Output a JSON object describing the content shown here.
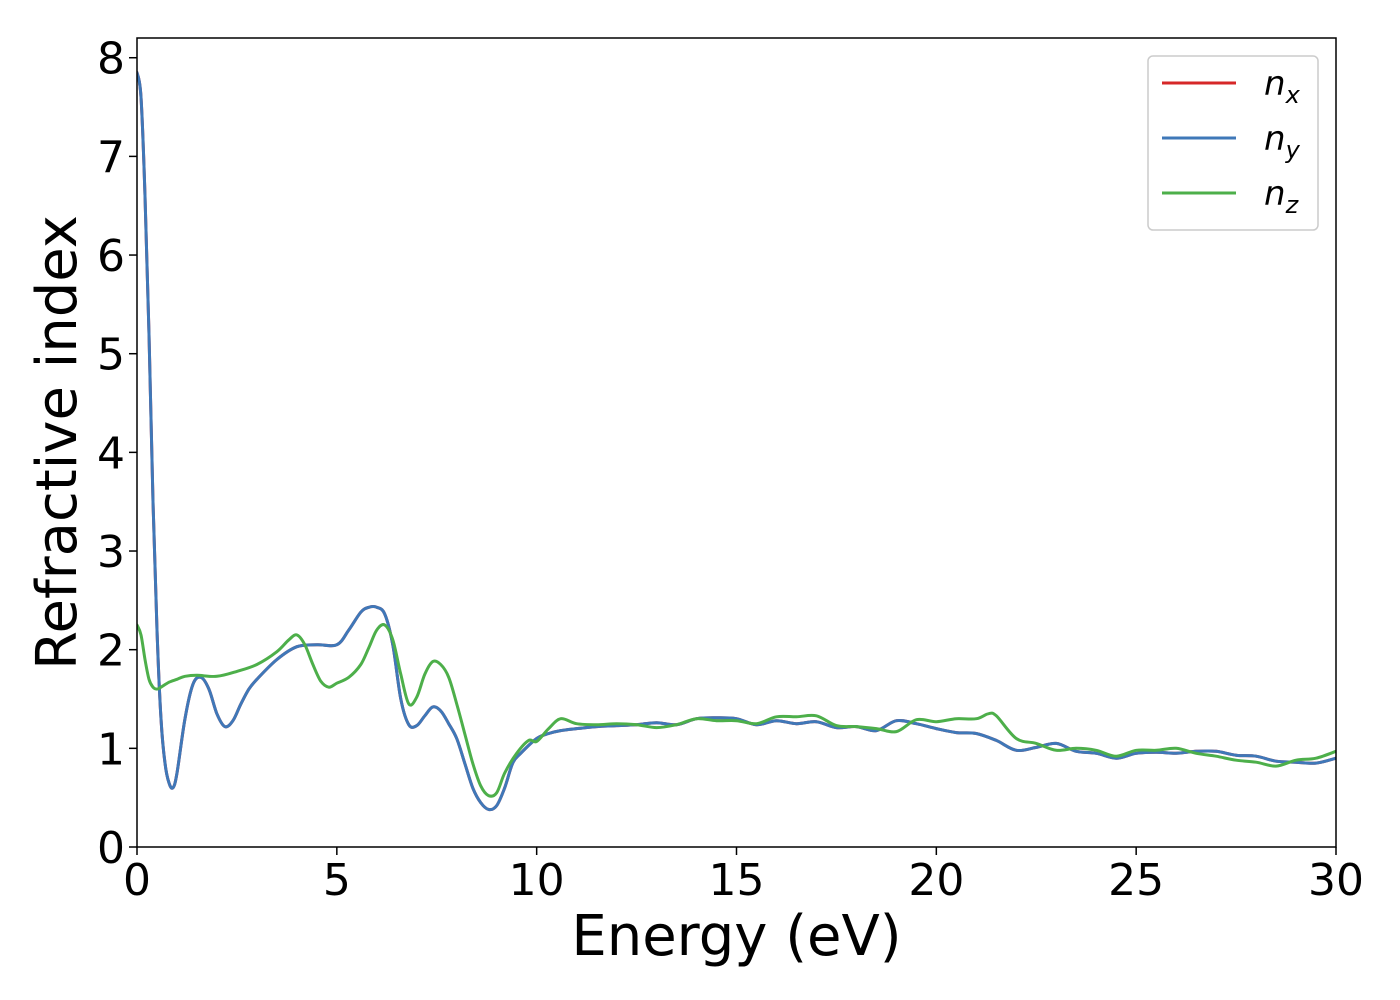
{
  "chart_data": {
    "type": "line",
    "xlabel": "Energy (eV)",
    "ylabel": "Refractive index",
    "xlim": [
      0,
      30
    ],
    "ylim": [
      0,
      8.2
    ],
    "xticks": [
      0,
      5,
      10,
      15,
      20,
      25,
      30
    ],
    "yticks": [
      0,
      1,
      2,
      3,
      4,
      5,
      6,
      7,
      8
    ],
    "grid": false,
    "legend_position": "top-right",
    "series": [
      {
        "name": "n",
        "subscript": "x",
        "color": "#d62728",
        "x": [
          0,
          0.1,
          0.2,
          0.3,
          0.4,
          0.5,
          0.6,
          0.7,
          0.8,
          0.9,
          1.0,
          1.2,
          1.4,
          1.6,
          1.8,
          2.0,
          2.2,
          2.4,
          2.6,
          2.8,
          3.0,
          3.5,
          4.0,
          4.5,
          5.0,
          5.3,
          5.6,
          5.8,
          6.0,
          6.2,
          6.4,
          6.6,
          6.8,
          7.0,
          7.2,
          7.4,
          7.6,
          7.8,
          8.0,
          8.2,
          8.4,
          8.6,
          8.8,
          9.0,
          9.2,
          9.4,
          9.6,
          10.0,
          10.3,
          10.6,
          11.0,
          11.5,
          12.0,
          12.5,
          13.0,
          13.5,
          14.0,
          14.5,
          15.0,
          15.5,
          16.0,
          16.5,
          17.0,
          17.5,
          18.0,
          18.5,
          19.0,
          19.5,
          20.0,
          20.5,
          21.0,
          21.5,
          22.0,
          22.5,
          23.0,
          23.5,
          24.0,
          24.5,
          25.0,
          25.5,
          26.0,
          26.5,
          27.0,
          27.5,
          28.0,
          28.5,
          29.0,
          29.5,
          30.0
        ],
        "y": [
          7.85,
          7.6,
          6.6,
          5.2,
          3.5,
          2.2,
          1.3,
          0.85,
          0.65,
          0.6,
          0.75,
          1.3,
          1.65,
          1.72,
          1.6,
          1.35,
          1.22,
          1.28,
          1.45,
          1.6,
          1.7,
          1.9,
          2.03,
          2.05,
          2.05,
          2.2,
          2.38,
          2.43,
          2.43,
          2.36,
          2.05,
          1.5,
          1.24,
          1.23,
          1.33,
          1.42,
          1.38,
          1.25,
          1.1,
          0.85,
          0.6,
          0.45,
          0.38,
          0.42,
          0.6,
          0.85,
          0.95,
          1.1,
          1.15,
          1.18,
          1.2,
          1.22,
          1.23,
          1.24,
          1.26,
          1.24,
          1.3,
          1.31,
          1.3,
          1.24,
          1.28,
          1.25,
          1.27,
          1.21,
          1.22,
          1.18,
          1.28,
          1.25,
          1.2,
          1.16,
          1.15,
          1.08,
          0.98,
          1.01,
          1.05,
          0.97,
          0.95,
          0.9,
          0.95,
          0.96,
          0.95,
          0.97,
          0.97,
          0.93,
          0.92,
          0.87,
          0.86,
          0.85,
          0.9
        ]
      },
      {
        "name": "n",
        "subscript": "y",
        "color": "#3f78b8",
        "x": [
          0,
          0.1,
          0.2,
          0.3,
          0.4,
          0.5,
          0.6,
          0.7,
          0.8,
          0.9,
          1.0,
          1.2,
          1.4,
          1.6,
          1.8,
          2.0,
          2.2,
          2.4,
          2.6,
          2.8,
          3.0,
          3.5,
          4.0,
          4.5,
          5.0,
          5.3,
          5.6,
          5.8,
          6.0,
          6.2,
          6.4,
          6.6,
          6.8,
          7.0,
          7.2,
          7.4,
          7.6,
          7.8,
          8.0,
          8.2,
          8.4,
          8.6,
          8.8,
          9.0,
          9.2,
          9.4,
          9.6,
          10.0,
          10.3,
          10.6,
          11.0,
          11.5,
          12.0,
          12.5,
          13.0,
          13.5,
          14.0,
          14.5,
          15.0,
          15.5,
          16.0,
          16.5,
          17.0,
          17.5,
          18.0,
          18.5,
          19.0,
          19.5,
          20.0,
          20.5,
          21.0,
          21.5,
          22.0,
          22.5,
          23.0,
          23.5,
          24.0,
          24.5,
          25.0,
          25.5,
          26.0,
          26.5,
          27.0,
          27.5,
          28.0,
          28.5,
          29.0,
          29.5,
          30.0
        ],
        "y": [
          7.85,
          7.6,
          6.6,
          5.2,
          3.5,
          2.2,
          1.3,
          0.85,
          0.65,
          0.6,
          0.75,
          1.3,
          1.65,
          1.72,
          1.6,
          1.35,
          1.22,
          1.28,
          1.45,
          1.6,
          1.7,
          1.9,
          2.03,
          2.05,
          2.05,
          2.2,
          2.38,
          2.43,
          2.43,
          2.36,
          2.05,
          1.5,
          1.24,
          1.23,
          1.33,
          1.42,
          1.38,
          1.25,
          1.1,
          0.85,
          0.6,
          0.45,
          0.38,
          0.42,
          0.6,
          0.85,
          0.95,
          1.1,
          1.15,
          1.18,
          1.2,
          1.22,
          1.23,
          1.24,
          1.26,
          1.24,
          1.3,
          1.31,
          1.3,
          1.24,
          1.28,
          1.25,
          1.27,
          1.21,
          1.22,
          1.18,
          1.28,
          1.25,
          1.2,
          1.16,
          1.15,
          1.08,
          0.98,
          1.01,
          1.05,
          0.97,
          0.95,
          0.9,
          0.95,
          0.96,
          0.95,
          0.97,
          0.97,
          0.93,
          0.92,
          0.87,
          0.86,
          0.85,
          0.9
        ]
      },
      {
        "name": "n",
        "subscript": "z",
        "color": "#4daf4a",
        "x": [
          0,
          0.1,
          0.2,
          0.3,
          0.4,
          0.5,
          0.6,
          0.8,
          1.0,
          1.2,
          1.5,
          2.0,
          2.5,
          3.0,
          3.5,
          3.8,
          4.0,
          4.2,
          4.4,
          4.6,
          4.8,
          5.0,
          5.3,
          5.6,
          5.8,
          6.0,
          6.2,
          6.4,
          6.6,
          6.8,
          7.0,
          7.2,
          7.4,
          7.6,
          7.8,
          8.0,
          8.2,
          8.4,
          8.6,
          8.8,
          9.0,
          9.2,
          9.5,
          9.8,
          10.0,
          10.3,
          10.6,
          11.0,
          11.5,
          12.0,
          12.5,
          13.0,
          13.5,
          14.0,
          14.5,
          15.0,
          15.5,
          16.0,
          16.5,
          17.0,
          17.5,
          18.0,
          18.5,
          19.0,
          19.5,
          20.0,
          20.5,
          21.0,
          21.3,
          21.5,
          22.0,
          22.5,
          23.0,
          23.5,
          24.0,
          24.5,
          25.0,
          25.5,
          26.0,
          26.5,
          27.0,
          27.5,
          28.0,
          28.5,
          29.0,
          29.5,
          30.0
        ],
        "y": [
          2.25,
          2.15,
          1.9,
          1.7,
          1.62,
          1.6,
          1.62,
          1.67,
          1.7,
          1.73,
          1.74,
          1.73,
          1.78,
          1.85,
          1.98,
          2.1,
          2.15,
          2.05,
          1.85,
          1.68,
          1.62,
          1.66,
          1.72,
          1.85,
          2.02,
          2.2,
          2.25,
          2.1,
          1.75,
          1.45,
          1.52,
          1.75,
          1.88,
          1.85,
          1.72,
          1.45,
          1.15,
          0.85,
          0.62,
          0.52,
          0.55,
          0.75,
          0.95,
          1.08,
          1.07,
          1.2,
          1.3,
          1.25,
          1.24,
          1.25,
          1.24,
          1.21,
          1.24,
          1.3,
          1.28,
          1.28,
          1.25,
          1.32,
          1.32,
          1.33,
          1.23,
          1.22,
          1.2,
          1.17,
          1.29,
          1.27,
          1.3,
          1.3,
          1.35,
          1.33,
          1.1,
          1.05,
          0.98,
          1.0,
          0.98,
          0.92,
          0.98,
          0.98,
          1.0,
          0.95,
          0.92,
          0.88,
          0.86,
          0.82,
          0.88,
          0.9,
          0.97
        ]
      }
    ]
  }
}
